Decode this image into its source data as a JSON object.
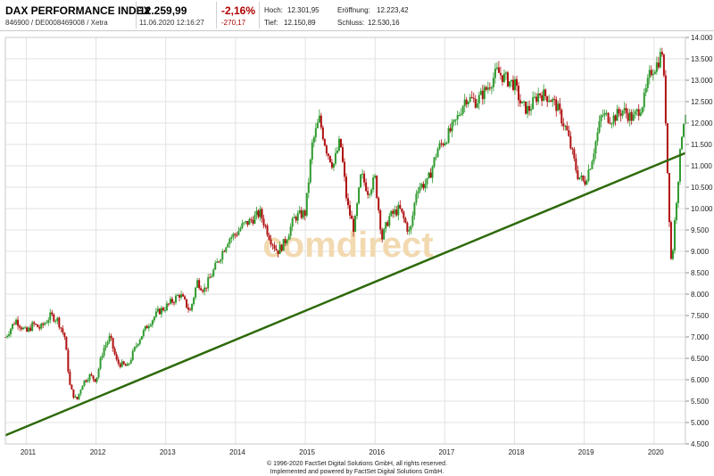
{
  "header": {
    "name": "DAX PERFORMANCE INDEX",
    "ids": "846900 / DE0008469008 / Xetra",
    "price": "12.259,99",
    "datetime": "11.06.2020 12:16:27",
    "change_pct": "-2,16%",
    "change_abs": "-270,17",
    "stats": {
      "high_label": "Hoch:",
      "high_value": "12.301,95",
      "open_label": "Eröffnung:",
      "open_value": "12.223,42",
      "low_label": "Tief:",
      "low_value": "12.150,89",
      "close_label": "Schluss:",
      "close_value": "12.530,16"
    }
  },
  "watermark": "comdirect",
  "footer": {
    "line1": "© 1996-2020 FactSet Digital Solutions GmbH, all rights reserved.",
    "line2": "Implemented and powered by FactSet Digital Solutions GmbH."
  },
  "colors": {
    "up": "#2e9a2e",
    "down": "#b01010",
    "trend": "#2d6a0a",
    "grid": "#e2e2e2"
  },
  "chart_data": {
    "type": "line",
    "y_ticks": [
      "4.500",
      "5.000",
      "5.500",
      "6.000",
      "6.500",
      "7.000",
      "7.500",
      "8.000",
      "8.500",
      "9.000",
      "9.500",
      "10.000",
      "10.500",
      "11.000",
      "11.500",
      "12.000",
      "12.500",
      "13.000",
      "13.500",
      "14.000"
    ],
    "x_ticks": [
      "2011",
      "2012",
      "2013",
      "2014",
      "2015",
      "2016",
      "2017",
      "2018",
      "2019",
      "2020"
    ],
    "ylim": [
      4500,
      14000
    ],
    "xlim": [
      2010.7,
      2020.45
    ],
    "x_tick_values": [
      2011,
      2012,
      2013,
      2014,
      2015,
      2016,
      2017,
      2018,
      2019,
      2020
    ],
    "grid": true,
    "series": [
      {
        "x": [
          2010.7,
          2010.85,
          2011.0,
          2011.1,
          2011.2,
          2011.35,
          2011.45,
          2011.55,
          2011.63,
          2011.72,
          2011.8,
          2011.9,
          2012.0,
          2012.1,
          2012.2,
          2012.3,
          2012.45,
          2012.6,
          2012.75,
          2012.9,
          2013.0,
          2013.2,
          2013.35,
          2013.45,
          2013.55,
          2013.7,
          2013.9,
          2014.0,
          2014.1,
          2014.2,
          2014.35,
          2014.5,
          2014.6,
          2014.7,
          2014.85,
          2015.0,
          2015.1,
          2015.2,
          2015.3,
          2015.4,
          2015.5,
          2015.6,
          2015.7,
          2015.8,
          2015.9,
          2016.0,
          2016.1,
          2016.2,
          2016.35,
          2016.5,
          2016.6,
          2016.75,
          2016.9,
          2017.0,
          2017.15,
          2017.3,
          2017.45,
          2017.6,
          2017.75,
          2017.9,
          2018.0,
          2018.1,
          2018.2,
          2018.35,
          2018.5,
          2018.6,
          2018.75,
          2018.9,
          2019.0,
          2019.1,
          2019.25,
          2019.4,
          2019.55,
          2019.7,
          2019.85,
          2019.95,
          2020.05,
          2020.12,
          2020.17,
          2020.2,
          2020.25,
          2020.3,
          2020.35,
          2020.4,
          2020.44
        ],
        "y": [
          7000,
          7400,
          7100,
          7300,
          7200,
          7500,
          7400,
          7000,
          5800,
          5500,
          5900,
          6100,
          6000,
          6700,
          7000,
          6400,
          6300,
          6900,
          7300,
          7600,
          7700,
          8000,
          7600,
          8300,
          8100,
          8600,
          9300,
          9400,
          9600,
          9700,
          9900,
          9300,
          9000,
          9200,
          9800,
          9900,
          11500,
          12100,
          11400,
          11000,
          11600,
          10100,
          9500,
          10800,
          10400,
          10700,
          9300,
          9800,
          10000,
          9400,
          10500,
          10600,
          11400,
          11600,
          12000,
          12600,
          12500,
          12800,
          13200,
          13000,
          12900,
          12400,
          12300,
          12700,
          12600,
          12400,
          11800,
          10800,
          10600,
          11100,
          12200,
          12100,
          12300,
          12100,
          12500,
          13200,
          13400,
          13700,
          12000,
          10500,
          8600,
          9800,
          10800,
          11800,
          12260
        ]
      }
    ],
    "trendline": {
      "x": [
        2010.7,
        2020.45
      ],
      "y": [
        4700,
        11300
      ]
    }
  }
}
